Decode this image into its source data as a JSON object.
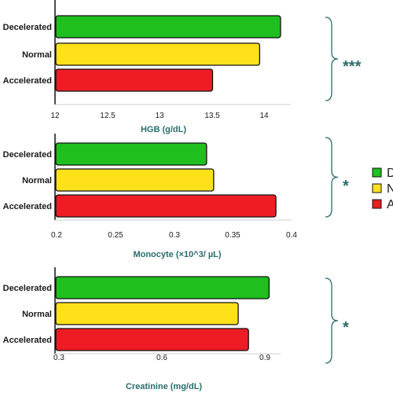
{
  "colors": {
    "Decelerated": "#1fbf1f",
    "Normal": "#ffe11a",
    "Accelerated": "#ee1c24",
    "bar_stroke": "#111111",
    "accent": "#2b6b6b"
  },
  "legend": {
    "items": [
      {
        "label": "D",
        "key": "Decelerated"
      },
      {
        "label": "N",
        "key": "Normal"
      },
      {
        "label": "A",
        "key": "Accelerated"
      }
    ]
  },
  "chart_data": [
    {
      "type": "bar",
      "orientation": "horizontal",
      "xlabel": "HGB (g/dL)",
      "categories": [
        "Decelerated",
        "Normal",
        "Accelerated"
      ],
      "values": [
        14.15,
        13.95,
        13.5
      ],
      "xlim": [
        12,
        14.2
      ],
      "ticks": [
        12,
        12.5,
        13,
        13.5,
        14
      ],
      "tick_labels": [
        "12",
        "12.5",
        "13",
        "13.5",
        "14"
      ],
      "significance": "***"
    },
    {
      "type": "bar",
      "orientation": "horizontal",
      "xlabel": "Monocyte (×10^3/ µL)",
      "categories": [
        "Decelerated",
        "Normal",
        "Accelerated"
      ],
      "values": [
        0.327,
        0.333,
        0.386
      ],
      "xlim": [
        0.2,
        0.4
      ],
      "ticks": [
        0.2,
        0.25,
        0.3,
        0.35,
        0.4
      ],
      "tick_labels": [
        "0.2",
        "0.25",
        "0.3",
        "0.35",
        "0.4"
      ],
      "significance": "*"
    },
    {
      "type": "bar",
      "orientation": "horizontal",
      "xlabel": "Creatinine (mg/dL)",
      "categories": [
        "Decelerated",
        "Normal",
        "Accelerated"
      ],
      "values": [
        0.91,
        0.82,
        0.85
      ],
      "xlim": [
        0.3,
        0.95
      ],
      "ticks": [
        0.3,
        0.6,
        0.9
      ],
      "tick_labels": [
        "0.3",
        "0.6",
        "0.9"
      ],
      "significance": "*"
    }
  ]
}
